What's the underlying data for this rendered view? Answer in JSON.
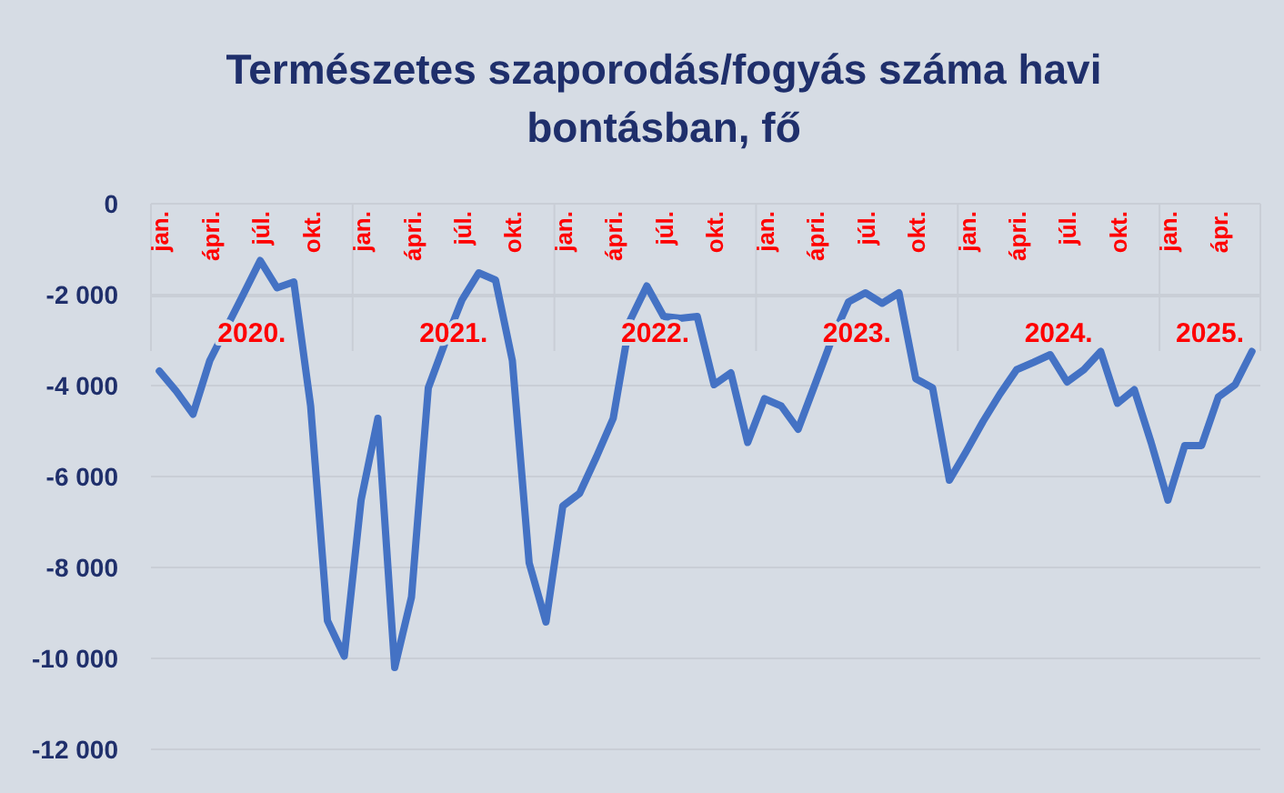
{
  "chart_data": {
    "type": "line",
    "title": "Természetes szaporodás/fogyás száma havi bontásban, fő",
    "categories": [
      "jan.",
      null,
      null,
      "ápri.",
      null,
      null,
      "júl.",
      null,
      null,
      "okt.",
      null,
      null,
      "jan.",
      null,
      null,
      "ápri.",
      null,
      null,
      "júl.",
      null,
      null,
      "okt.",
      null,
      null,
      "jan.",
      null,
      null,
      "ápri.",
      null,
      null,
      "júl.",
      null,
      null,
      "okt.",
      null,
      null,
      "jan.",
      null,
      null,
      "ápri.",
      null,
      null,
      "júl.",
      null,
      null,
      "okt.",
      null,
      null,
      "jan.",
      null,
      null,
      "ápri.",
      null,
      null,
      "júl.",
      null,
      null,
      "okt.",
      null,
      null,
      "jan.",
      null,
      null,
      "ápr.",
      null,
      null
    ],
    "annotations": [
      "2020.",
      "2021.",
      "2022.",
      "2023.",
      "2024.",
      "2025."
    ],
    "series": [
      {
        "color": "#4472c4",
        "values": [
          -3680,
          -4120,
          -4630,
          -3450,
          -2720,
          -1990,
          -1250,
          -1850,
          -1720,
          -4450,
          -9170,
          -9950,
          -6520,
          -4720,
          -10200,
          -8650,
          -4050,
          -3050,
          -2120,
          -1520,
          -1680,
          -3450,
          -7900,
          -9200,
          -6650,
          -6370,
          -5570,
          -4720,
          -2570,
          -1810,
          -2480,
          -2520,
          -2480,
          -3980,
          -3720,
          -5250,
          -4290,
          -4450,
          -4960,
          -3980,
          -2990,
          -2160,
          -1960,
          -2190,
          -1960,
          -3850,
          -4050,
          -6080,
          -5450,
          -4790,
          -4190,
          -3650,
          -3490,
          -3320,
          -3920,
          -3650,
          -3250,
          -4390,
          -4090,
          -5250,
          -6520,
          -5320,
          -5320,
          -4250,
          -3980,
          -3250
        ]
      }
    ],
    "ylim": [
      -12000,
      0
    ],
    "yticks": [
      0,
      {
        "value": -2000,
        "label": "-2 000"
      },
      {
        "value": -4000,
        "label": "-4 000"
      },
      {
        "value": -6000,
        "label": "-6 000"
      },
      {
        "value": -8000,
        "label": "-8 000"
      },
      {
        "value": -10000,
        "label": "-10 000"
      },
      {
        "value": -12000,
        "label": "-12 000"
      }
    ],
    "grid": "y",
    "marker": "none",
    "line_style": "solid"
  }
}
